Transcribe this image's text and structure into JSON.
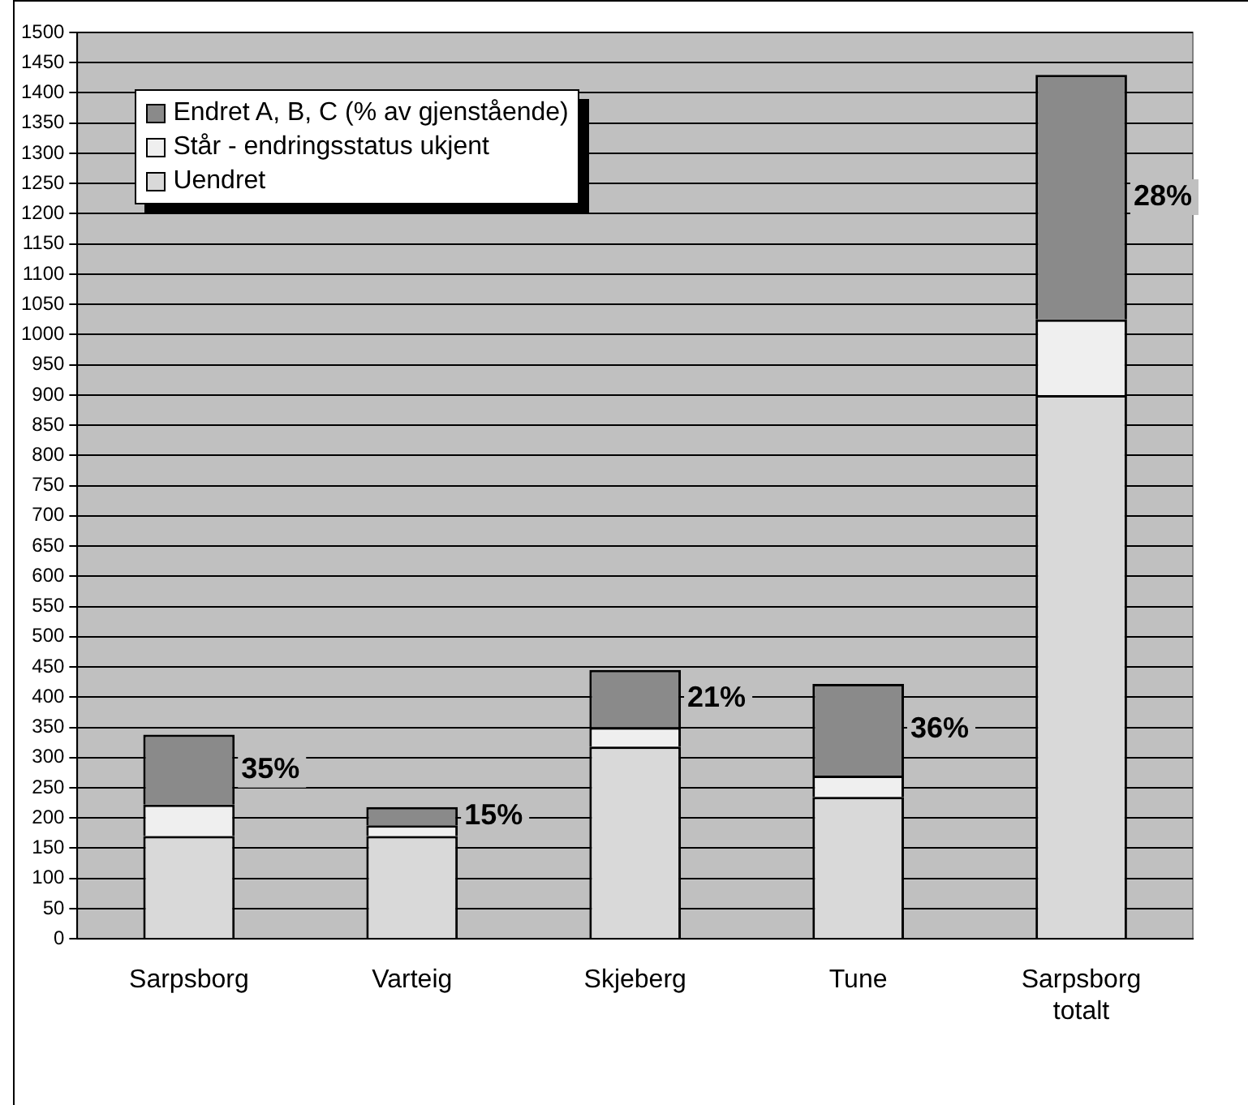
{
  "chart_data": {
    "type": "bar",
    "stacked": true,
    "categories": [
      "Sarpsborg",
      "Varteig",
      "Skjeberg",
      "Tune",
      "Sarpsborg totalt"
    ],
    "series": [
      {
        "name": "Uendret",
        "color": "#d9d9d9",
        "values": [
          170,
          170,
          318,
          235,
          900
        ]
      },
      {
        "name": "Står - endringsstatus ukjent",
        "color": "#efefef",
        "values": [
          52,
          18,
          32,
          35,
          125
        ]
      },
      {
        "name": "Endret A, B, C  (% av gjenstående)",
        "color": "#8a8a8a",
        "values": [
          116,
          30,
          95,
          152,
          405
        ]
      }
    ],
    "ylim": [
      0,
      1500
    ],
    "yticks": [
      0,
      50,
      100,
      150,
      200,
      250,
      300,
      350,
      400,
      450,
      500,
      550,
      600,
      650,
      700,
      750,
      800,
      850,
      900,
      950,
      1000,
      1050,
      1100,
      1150,
      1200,
      1250,
      1300,
      1350,
      1400,
      1450,
      1500
    ],
    "grid": "y",
    "legend": "top left",
    "annotations": [
      "35%",
      "15%",
      "21%",
      "36%",
      "28%"
    ]
  }
}
